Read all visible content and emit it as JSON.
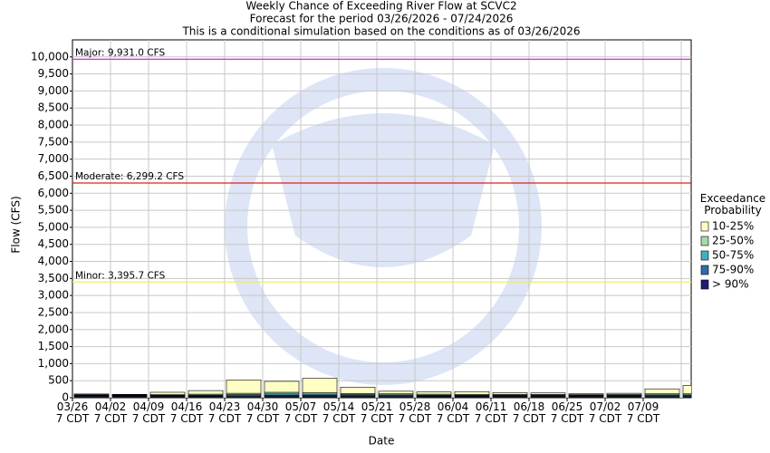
{
  "chart_data": {
    "type": "stacked-bar",
    "title": "Weekly Chance of Exceeding River Flow at SCVC2",
    "subtitle": "Forecast for the period 03/26/2026 - 07/24/2026",
    "note": "This is a conditional simulation based on the conditions as of 03/26/2026",
    "y_label": "Flow (CFS)",
    "x_label": "Date",
    "legend_title": "Exceedance Probability",
    "categories": [
      "03/26\n7 CDT",
      "04/02\n7 CDT",
      "04/09\n7 CDT",
      "04/16\n7 CDT",
      "04/23\n7 CDT",
      "04/30\n7 CDT",
      "05/07\n7 CDT",
      "05/14\n7 CDT",
      "05/21\n7 CDT",
      "05/28\n7 CDT",
      "06/04\n7 CDT",
      "06/11\n7 CDT",
      "06/18\n7 CDT",
      "06/25\n7 CDT",
      "07/02\n7 CDT",
      "07/09\n7 CDT",
      null
    ],
    "series": [
      {
        "name": "> 90%",
        "color": "#1c1c78",
        "values": [
          40,
          35,
          35,
          35,
          35,
          40,
          40,
          40,
          35,
          35,
          35,
          35,
          35,
          35,
          35,
          35,
          35
        ]
      },
      {
        "name": "75-90%",
        "color": "#2e6ea8",
        "values": [
          20,
          20,
          20,
          20,
          25,
          30,
          30,
          25,
          25,
          20,
          20,
          20,
          20,
          20,
          20,
          25,
          25
        ]
      },
      {
        "name": "50-75%",
        "color": "#3fb0c4",
        "values": [
          15,
          15,
          15,
          20,
          30,
          40,
          35,
          25,
          25,
          20,
          20,
          20,
          20,
          15,
          20,
          25,
          25
        ]
      },
      {
        "name": "25-50%",
        "color": "#a6d9a6",
        "values": [
          15,
          15,
          20,
          30,
          40,
          50,
          40,
          35,
          30,
          30,
          25,
          20,
          20,
          20,
          25,
          30,
          30
        ]
      },
      {
        "name": "10-25%",
        "color": "#ffffc4",
        "values": [
          20,
          15,
          70,
          105,
          390,
          320,
          425,
          185,
          75,
          65,
          80,
          55,
          45,
          30,
          30,
          145,
          245
        ]
      }
    ],
    "thresholds": [
      {
        "label": "Major: 9,931.0 CFS",
        "value": 9931.0,
        "color": "#cc33cc"
      },
      {
        "label": "Moderate: 6,299.2 CFS",
        "value": 6299.2,
        "color": "#dd2222"
      },
      {
        "label": "Minor: 3,395.7 CFS",
        "value": 3395.7,
        "color": "#eeee66"
      }
    ],
    "ylim": [
      0,
      10500
    ],
    "yticks": [
      0,
      500,
      {
        "value": 1000,
        "label": "1,000"
      },
      {
        "value": 1500,
        "label": "1,500"
      },
      {
        "value": 2000,
        "label": "2,000"
      },
      {
        "value": 2500,
        "label": "2,500"
      },
      {
        "value": 3000,
        "label": "3,000"
      },
      {
        "value": 3500,
        "label": "3,500"
      },
      {
        "value": 4000,
        "label": "4,000"
      },
      {
        "value": 4500,
        "label": "4,500"
      },
      {
        "value": 5000,
        "label": "5,000"
      },
      {
        "value": 5500,
        "label": "5,500"
      },
      {
        "value": 6000,
        "label": "6,000"
      },
      {
        "value": 6500,
        "label": "6,500"
      },
      {
        "value": 7000,
        "label": "7,000"
      },
      {
        "value": 7500,
        "label": "7,500"
      },
      {
        "value": 8000,
        "label": "8,000"
      },
      {
        "value": 8500,
        "label": "8,500"
      },
      {
        "value": 9000,
        "label": "9,000"
      },
      {
        "value": 9500,
        "label": "9,500"
      },
      {
        "value": 10000,
        "label": "10,000"
      }
    ],
    "grid": true
  }
}
